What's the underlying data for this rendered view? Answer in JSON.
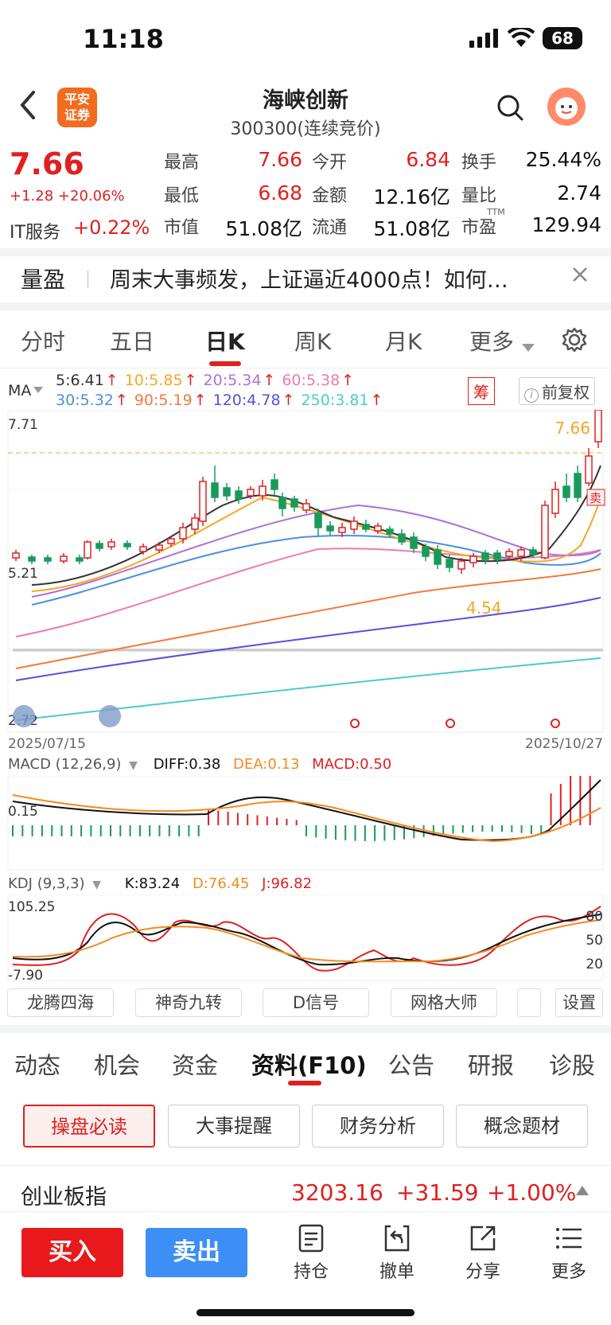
{
  "status_bar": {
    "time": "11:18",
    "battery": "68"
  },
  "header": {
    "name": "海峡创新",
    "code": "300300(连续竞价)",
    "logo_text": "平安\n证券"
  },
  "quote": {
    "price": "7.66",
    "change": "+1.28",
    "change_pct": "+20.06%",
    "sector_name": "IT服务",
    "sector_change": "+0.22%",
    "rows": [
      [
        {
          "label": "最高",
          "value": "7.66",
          "color": "red"
        },
        {
          "label": "今开",
          "value": "6.84",
          "color": "red"
        },
        {
          "label": "换手",
          "value": "25.44%",
          "color": "dark"
        }
      ],
      [
        {
          "label": "最低",
          "value": "6.68",
          "color": "red"
        },
        {
          "label": "金额",
          "value": "12.16亿",
          "color": "dark"
        },
        {
          "label": "量比",
          "value": "2.74",
          "color": "dark"
        }
      ],
      [
        {
          "label": "市值",
          "value": "51.08亿",
          "color": "dark"
        },
        {
          "label": "流通",
          "value": "51.08亿",
          "color": "dark"
        },
        {
          "label": "市盈",
          "value": "129.94",
          "color": "dark",
          "sup": "TTM"
        }
      ]
    ]
  },
  "news": {
    "tag": "量盈",
    "text": "周末大事频发，上证逼近4000点！如何…"
  },
  "period_tabs": [
    "分时",
    "五日",
    "日K",
    "周K",
    "月K",
    "更多"
  ],
  "active_period": 2,
  "ma": {
    "label": "MA",
    "row1": [
      {
        "t": "5:6.41",
        "c": "#333333"
      },
      {
        "t": "10:5.85",
        "c": "#f5a623"
      },
      {
        "t": "20:5.34",
        "c": "#b06fd8"
      },
      {
        "t": "60:5.38",
        "c": "#f07ab0"
      }
    ],
    "row2": [
      {
        "t": "30:5.32",
        "c": "#4a90e2"
      },
      {
        "t": "90:5.19",
        "c": "#f07b3f"
      },
      {
        "t": "120:4.78",
        "c": "#5450e0"
      },
      {
        "t": "250:3.81",
        "c": "#4cc9d0"
      }
    ],
    "chip_chou": "筹",
    "chip_fq": "前复权"
  },
  "kline_axis": {
    "top": "7.71",
    "mid": "5.21",
    "bottom": "2.72",
    "start_date": "2025/07/15",
    "end_date": "2025/10/27",
    "high_label": "7.66",
    "low_label": "4.54",
    "sell_flag": "卖"
  },
  "macd": {
    "title": "MACD (12,26,9)",
    "diff": "DIFF:0.38",
    "dea": "DEA:0.13",
    "macd": "MACD:0.50",
    "axis": "0.15"
  },
  "kdj": {
    "title": "KDJ (9,3,3)",
    "k": "K:83.24",
    "d": "D:76.45",
    "j": "J:96.82",
    "axis_top": "105.25",
    "axis_bottom": "-7.90",
    "r80": "80",
    "r50": "50",
    "r20": "20"
  },
  "indicator_buttons": [
    "龙腾四海",
    "神奇九转",
    "D信号",
    "网格大师",
    "设置"
  ],
  "f10_tabs": [
    "动态",
    "机会",
    "资金",
    "资料(F10)",
    "公告",
    "研报",
    "诊股"
  ],
  "active_f10": 3,
  "sub_buttons": [
    "操盘必读",
    "大事提醒",
    "财务分析",
    "概念题材"
  ],
  "index_ticker": {
    "name": "创业板指",
    "value": "3203.16",
    "change": "+31.59",
    "pct": "+1.00%"
  },
  "bottom_bar": {
    "buy": "买入",
    "sell": "卖出",
    "hold": "持仓",
    "cancel": "撤单",
    "share": "分享",
    "more": "更多"
  }
}
